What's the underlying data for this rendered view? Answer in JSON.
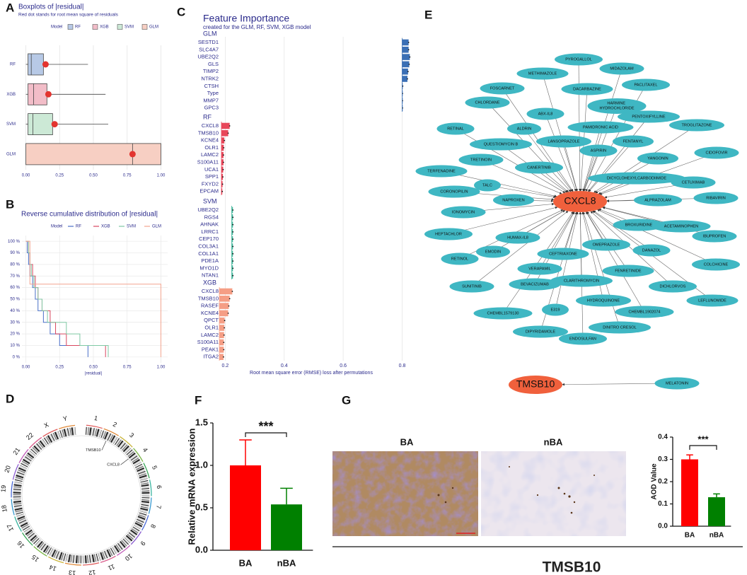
{
  "panel_labels": [
    "A",
    "B",
    "C",
    "D",
    "E",
    "F",
    "G"
  ],
  "chart_data": [
    {
      "type": "box",
      "title": "Boxplots of |residual|",
      "subtitle": "Red dot stands for root mean square of residuals",
      "legend_title": "Model",
      "boxes": [
        {
          "name": "RF",
          "color": "#b7c9e6",
          "min": 0.0,
          "q1": 0.016,
          "median": 0.04,
          "q3": 0.13,
          "max": 0.46,
          "rmse": 0.146
        },
        {
          "name": "XGB",
          "color": "#f2bdc8",
          "min": 0.0,
          "q1": 0.016,
          "median": 0.057,
          "q3": 0.156,
          "max": 0.59,
          "rmse": 0.167
        },
        {
          "name": "SVM",
          "color": "#cce9d6",
          "min": 0.0,
          "q1": 0.016,
          "median": 0.052,
          "q3": 0.198,
          "max": 0.61,
          "rmse": 0.213
        },
        {
          "name": "GLM",
          "color": "#f7cfc3",
          "min": 0.0,
          "q1": 0.0,
          "median": 0.79,
          "q3": 1.0,
          "max": 1.0,
          "rmse": 0.79
        }
      ],
      "rmse_color": "#e3342f",
      "xlim": [
        -0.05,
        1.05
      ],
      "xticks": [
        {
          "value": 0,
          "label": "0.00"
        },
        0.25,
        {
          "value": 0.5,
          "label": "0.50"
        },
        0.75,
        {
          "value": 1,
          "label": "1.00"
        }
      ]
    },
    {
      "type": "step",
      "title": "Reverse cumulative distribution of |residual|",
      "legend_title": "Model",
      "xlabel": "|residual|",
      "xlim": [
        -0.05,
        1.05
      ],
      "xticks": [
        {
          "value": 0,
          "label": "0.00"
        },
        0.25,
        {
          "value": 0.5,
          "label": "0.50"
        },
        0.75,
        {
          "value": 1,
          "label": "1.00"
        }
      ],
      "ylim": [
        -5,
        105
      ],
      "yticks": [
        {
          "value": 0,
          "label": "0 %"
        },
        {
          "value": 10,
          "label": "10 %"
        },
        {
          "value": 20,
          "label": "20 %"
        },
        {
          "value": 30,
          "label": "30 %"
        },
        {
          "value": 40,
          "label": "40 %"
        },
        {
          "value": 50,
          "label": "50 %"
        },
        {
          "value": 60,
          "label": "60 %"
        },
        {
          "value": 70,
          "label": "70 %"
        },
        {
          "value": 80,
          "label": "80 %"
        },
        {
          "value": 90,
          "label": "90 %"
        },
        {
          "value": 100,
          "label": "100 %"
        }
      ],
      "series": [
        {
          "name": "RF",
          "color": "#4a6fc8",
          "x": [
            0,
            0.01,
            0.02,
            0.03,
            0.05,
            0.07,
            0.09,
            0.13,
            0.18,
            0.25,
            0.46
          ],
          "values": [
            100,
            90,
            80,
            70,
            60,
            50,
            40,
            30,
            20,
            10,
            0
          ]
        },
        {
          "name": "XGB",
          "color": "#d9465f",
          "x": [
            0,
            0.02,
            0.03,
            0.05,
            0.07,
            0.09,
            0.12,
            0.18,
            0.22,
            0.3,
            0.59
          ],
          "values": [
            100,
            90,
            80,
            70,
            60,
            50,
            40,
            30,
            20,
            10,
            0
          ]
        },
        {
          "name": "SVM",
          "color": "#7fc9a4",
          "x": [
            0,
            0.02,
            0.03,
            0.04,
            0.06,
            0.09,
            0.12,
            0.16,
            0.3,
            0.4,
            0.61
          ],
          "values": [
            100,
            90,
            80,
            70,
            60,
            50,
            40,
            30,
            20,
            10,
            0
          ]
        },
        {
          "name": "GLM",
          "color": "#f4a48f",
          "x": [
            0,
            0.03,
            1.0
          ],
          "values": [
            100,
            63,
            0
          ]
        }
      ]
    },
    {
      "type": "importance",
      "title": "Feature Importance",
      "subtitle": "created for the GLM, RF, SVM, XGB model",
      "xlabel": "Root mean square error (RMSE) loss after permutations",
      "xlim": [
        0.175,
        0.83
      ],
      "xticks": [
        0.2,
        0.4,
        0.6,
        0.8
      ],
      "facets": [
        {
          "name": "GLM",
          "color": "#3a6fb5",
          "baseline": 0.8,
          "categories": [
            "SESTD1",
            "SLC4A7",
            "UBE2Q2",
            "GLS",
            "TIMP2",
            "NTRK2",
            "CTSH",
            "Type",
            "MMP7",
            "GPC3"
          ],
          "values": [
            0.822,
            0.822,
            0.826,
            0.824,
            0.82,
            0.818,
            0.802,
            0.801,
            0.801,
            0.801
          ]
        },
        {
          "name": "RF",
          "color": "#e8475a",
          "baseline": 0.187,
          "categories": [
            "CXCL8",
            "TMSB10",
            "KCNE4",
            "OLR1",
            "LAMC2",
            "S100A11",
            "UCA1",
            "SPP1",
            "FXYD2",
            "EPCAM"
          ],
          "values": [
            0.215,
            0.21,
            0.197,
            0.195,
            0.194,
            0.194,
            0.193,
            0.192,
            0.191,
            0.19
          ]
        },
        {
          "name": "SVM",
          "color": "#3fb59a",
          "baseline": 0.222,
          "categories": [
            "UBE2Q2",
            "RGS4",
            "AHNAK",
            "LRRC1",
            "CEP170",
            "COL3A1",
            "COL1A1",
            "PDE1A",
            "MYO1D",
            "NTAN1"
          ],
          "values": [
            0.226,
            0.226,
            0.226,
            0.226,
            0.226,
            0.226,
            0.226,
            0.226,
            0.226,
            0.226
          ]
        },
        {
          "name": "XGB",
          "color": "#f59e85",
          "baseline": 0.18,
          "categories": [
            "CXCL8",
            "TMSB10",
            "RASEF",
            "KCNE4",
            "QPCT",
            "OLR1",
            "LAMC2",
            "S100A11",
            "PEAK1",
            "ITGA2"
          ],
          "values": [
            0.224,
            0.215,
            0.212,
            0.21,
            0.198,
            0.197,
            0.196,
            0.195,
            0.195,
            0.194
          ]
        }
      ]
    },
    {
      "type": "bar",
      "ylabel": "Relative mRNA expression",
      "categories": [
        "BA",
        "nBA"
      ],
      "values": [
        1.0,
        0.54
      ],
      "errors": [
        0.3,
        0.19
      ],
      "colors": [
        "#ff0000",
        "#008000"
      ],
      "ylim": [
        0,
        1.5
      ],
      "yticks": [
        {
          "value": 0,
          "label": "0.0"
        },
        0.5,
        {
          "value": 1,
          "label": "1.0"
        },
        1.5
      ],
      "significance": "***"
    },
    {
      "type": "bar",
      "ylabel": "AOD Value",
      "categories": [
        "BA",
        "nBA"
      ],
      "values": [
        0.3,
        0.13
      ],
      "errors": [
        0.02,
        0.015
      ],
      "colors": [
        "#ff0000",
        "#008000"
      ],
      "ylim": [
        0,
        0.4
      ],
      "yticks": [
        {
          "value": 0,
          "label": "0.0"
        },
        0.1,
        0.2,
        0.3,
        0.4
      ],
      "significance": "***"
    }
  ],
  "network": {
    "hubs": [
      {
        "label": "CXCL8",
        "drugs": [
          "PYROGALLOL",
          "MIDAZOLAM",
          "METHIMAZOLE",
          "PACLITAXEL",
          "FOSCARNET",
          "DACARBAZINE",
          "HARMINE HYDROCHLORIDE",
          "CHLORDANE",
          "ABX-IL8",
          "PENTOXIFYLLINE",
          "PAMIDRONIC ACID",
          "ALDRIN",
          "RETINAL",
          "TROGLITAZONE",
          "LANSOPRAZOLE",
          "FENTANYL",
          "QUESTIOMYCIN B",
          "ASPIRIN",
          "CIDOFOVIR",
          "TRETINOIN",
          "YANGONIN",
          "CANERTINIB",
          "TERFENADINE",
          "DICYCLOHEXYLCARBODIIMIDE",
          "CETUXIMAB",
          "TALC",
          "CORONOPILIN",
          "RIBAVIRIN",
          "NAPROXEN",
          "ALPRAZOLAM",
          "IONOMYCIN",
          "BROXURIDINE",
          "ACETAMINOPHEN",
          "HEPTACHLOR",
          "IBUPROFEN",
          "HUMAX-IL8",
          "OMEPRAZOLE",
          "EMODIN",
          "DANAZOL",
          "CEFTRIAXONE",
          "RETINOL",
          "COLCHICINE",
          "VERAPAMIL",
          "FENRETINIDE",
          "CLARITHROMYCIN",
          "SUNITINIB",
          "BEVACIZUMAB",
          "DICHLORVOS",
          "HYDROQUINONE",
          "LEFLUNOMIDE",
          "CHEMBL1579130",
          "E319",
          "CHEMBL1902074",
          "DIPYRIDAMOLE",
          "DINITRO CRESOL",
          "ENDOSULFAN"
        ]
      },
      {
        "label": "TMSB10",
        "drugs": [
          "MELATONIN"
        ]
      }
    ]
  },
  "circos": {
    "chromosomes": [
      "1",
      "2",
      "3",
      "4",
      "5",
      "6",
      "7",
      "8",
      "9",
      "10",
      "11",
      "12",
      "13",
      "14",
      "15",
      "16",
      "17",
      "18",
      "19",
      "20",
      "21",
      "22",
      "X",
      "Y"
    ],
    "genes": [
      "TMSB10",
      "CXCL8"
    ]
  },
  "histology": {
    "labels": [
      "BA",
      "nBA"
    ],
    "gene": "TMSB10"
  }
}
